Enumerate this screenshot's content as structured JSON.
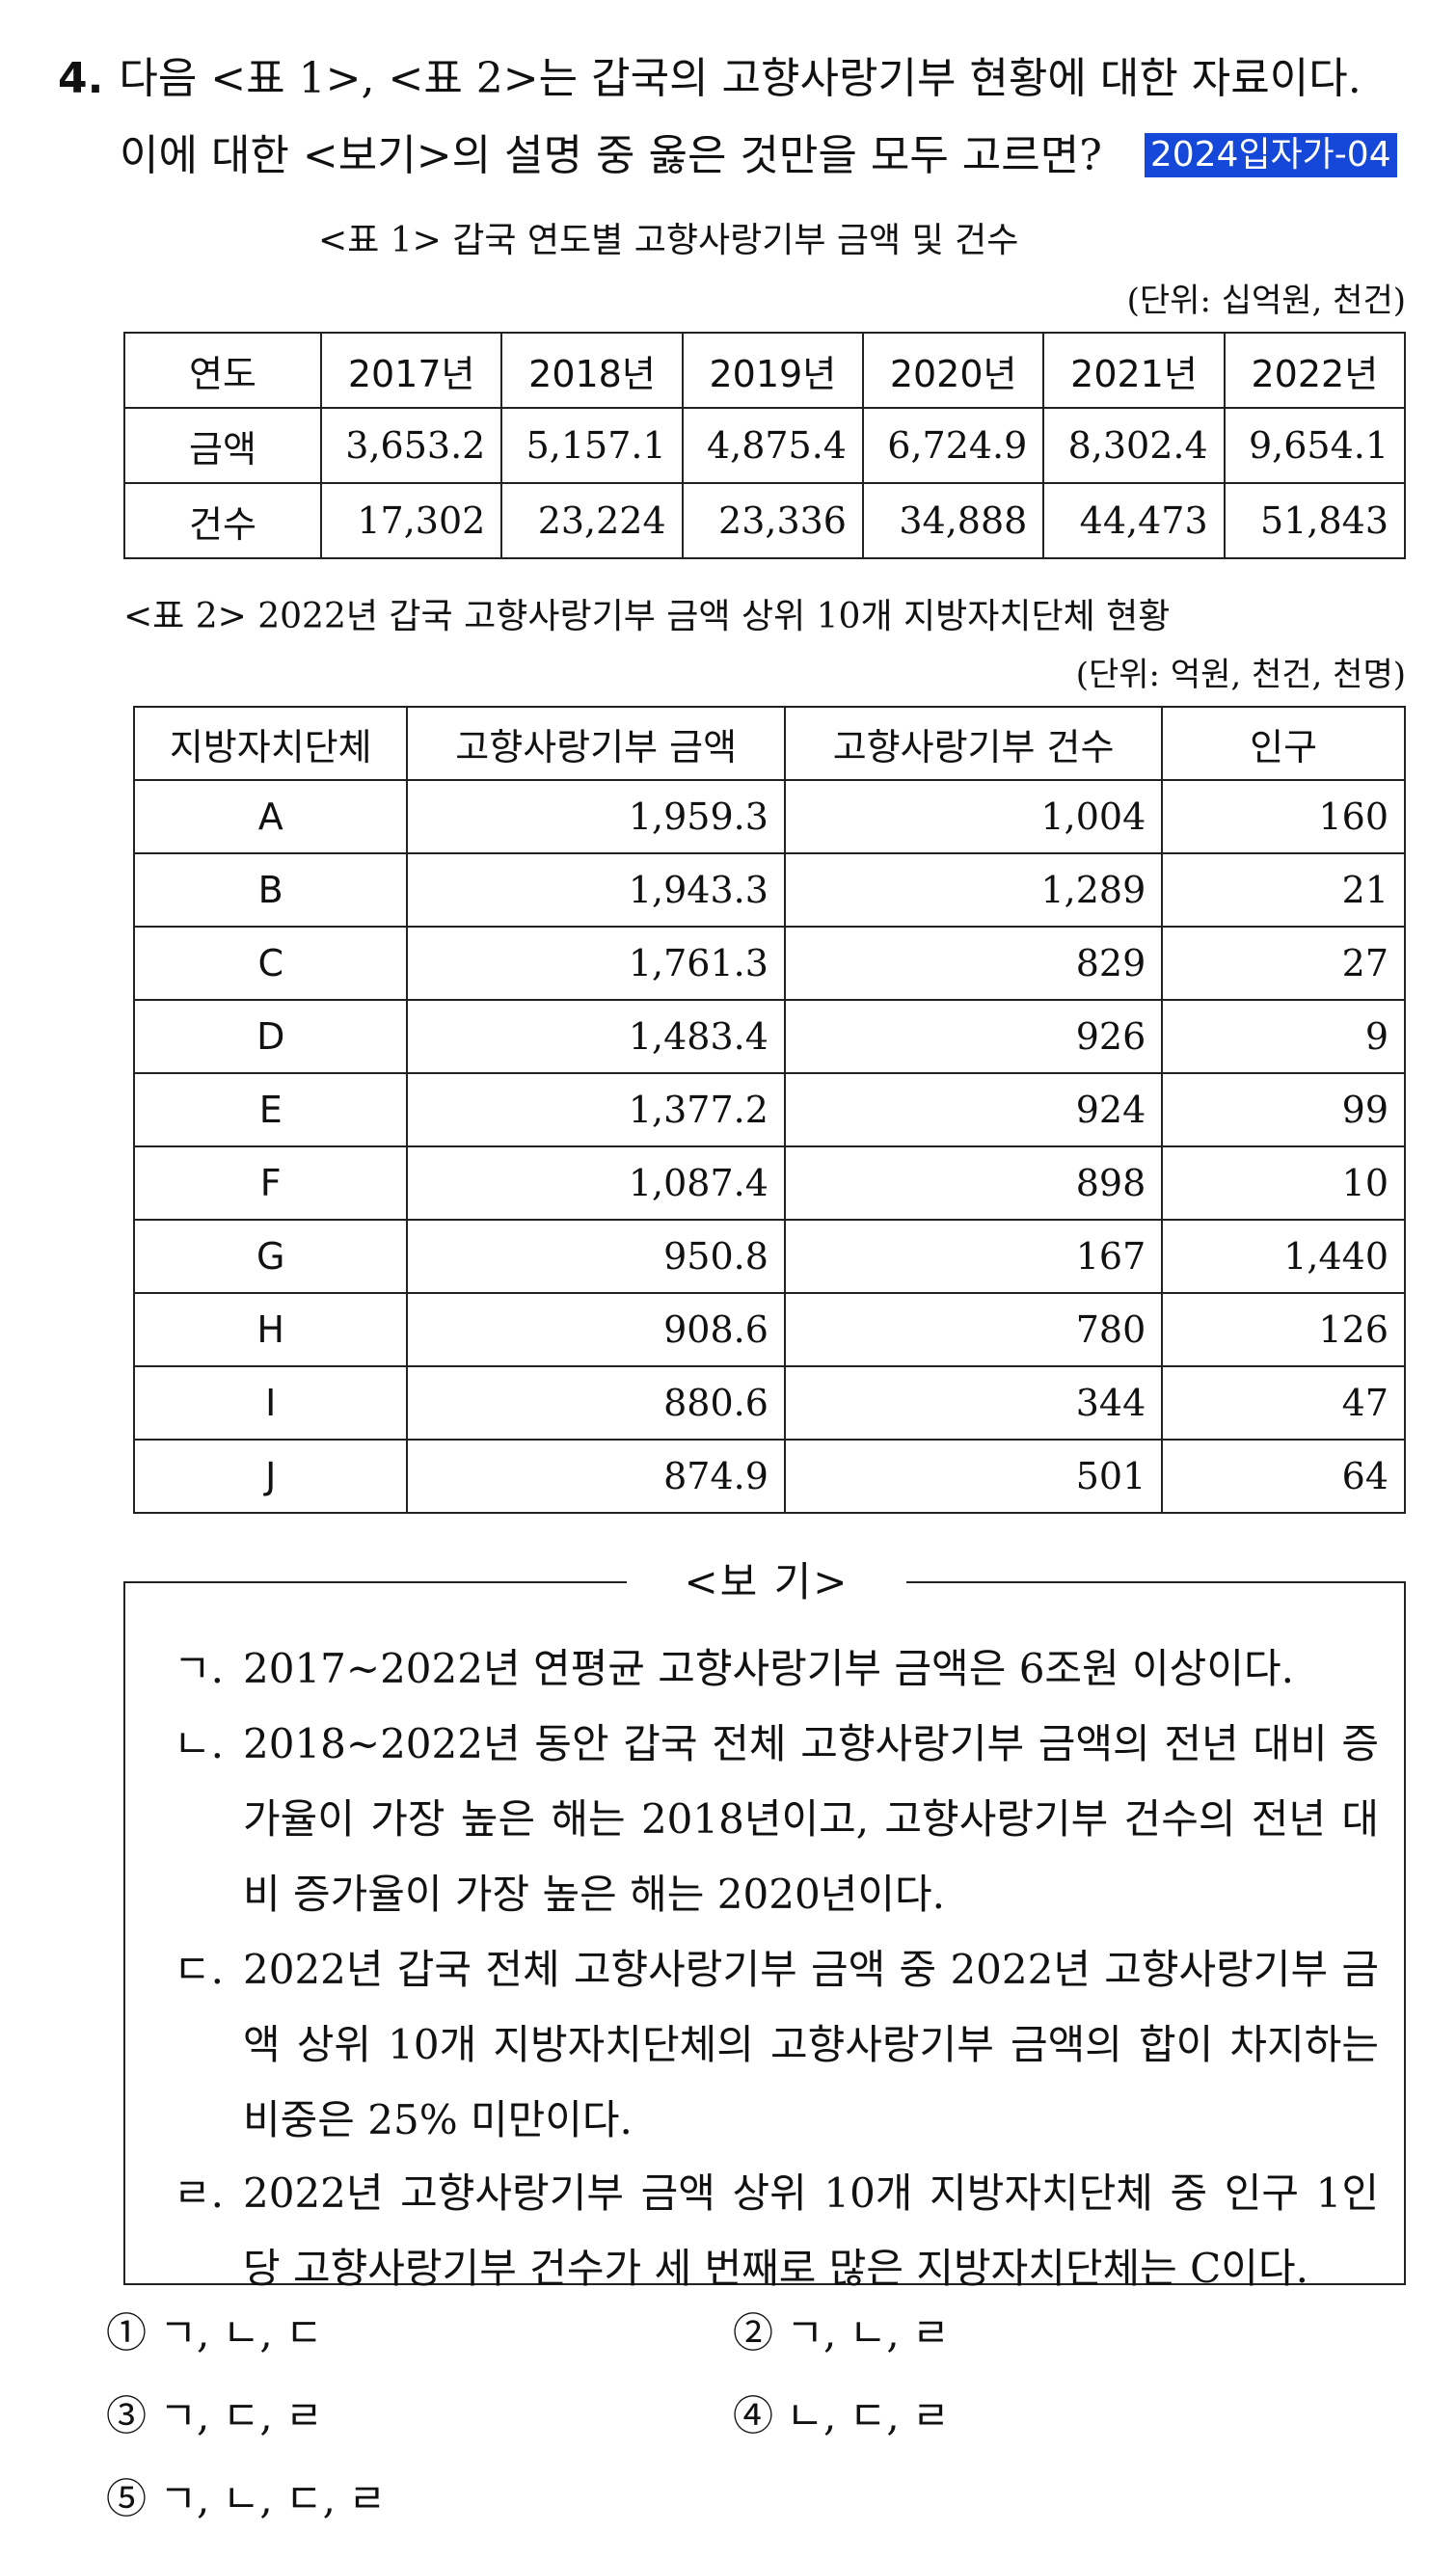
{
  "question": {
    "number": "4.",
    "line1": "다음 <표 1>, <표 2>는 갑국의 고향사랑기부 현황에 대한 자료이다.",
    "line2": "이에 대한 <보기>의 설명 중 옳은 것만을 모두 고르면?",
    "tag": "2024입자가-04"
  },
  "table1": {
    "caption": "<표 1> 갑국 연도별 고향사랑기부 금액 및 건수",
    "unit": "(단위: 십억원, 천건)",
    "header": [
      "연도",
      "2017년",
      "2018년",
      "2019년",
      "2020년",
      "2021년",
      "2022년"
    ],
    "rows": [
      [
        "금액",
        "3,653.2",
        "5,157.1",
        "4,875.4",
        "6,724.9",
        "8,302.4",
        "9,654.1"
      ],
      [
        "건수",
        "17,302",
        "23,224",
        "23,336",
        "34,888",
        "44,473",
        "51,843"
      ]
    ]
  },
  "table2": {
    "caption": "<표 2> 2022년 갑국 고향사랑기부 금액 상위 10개 지방자치단체 현황",
    "unit": "(단위: 억원, 천건, 천명)",
    "header": [
      "지방자치단체",
      "고향사랑기부 금액",
      "고향사랑기부 건수",
      "인구"
    ],
    "rows": [
      [
        "A",
        "1,959.3",
        "1,004",
        "160"
      ],
      [
        "B",
        "1,943.3",
        "1,289",
        "21"
      ],
      [
        "C",
        "1,761.3",
        "829",
        "27"
      ],
      [
        "D",
        "1,483.4",
        "926",
        "9"
      ],
      [
        "E",
        "1,377.2",
        "924",
        "99"
      ],
      [
        "F",
        "1,087.4",
        "898",
        "10"
      ],
      [
        "G",
        "950.8",
        "167",
        "1,440"
      ],
      [
        "H",
        "908.6",
        "780",
        "126"
      ],
      [
        "I",
        "880.6",
        "344",
        "47"
      ],
      [
        "J",
        "874.9",
        "501",
        "64"
      ]
    ]
  },
  "bogi": {
    "title": "<보    기>",
    "items": [
      {
        "mark": "ㄱ.",
        "text": "2017~2022년 연평균 고향사랑기부 금액은 6조원 이상이다."
      },
      {
        "mark": "ㄴ.",
        "text": "2018~2022년 동안 갑국 전체 고향사랑기부 금액의 전년 대비 증가율이 가장 높은 해는 2018년이고, 고향사랑기부 건수의 전년 대비 증가율이 가장 높은 해는 2020년이다."
      },
      {
        "mark": "ㄷ.",
        "text": "2022년 갑국 전체 고향사랑기부 금액 중 2022년 고향사랑기부 금액 상위 10개 지방자치단체의 고향사랑기부 금액의 합이 차지하는 비중은 25% 미만이다."
      },
      {
        "mark": "ㄹ.",
        "text": "2022년 고향사랑기부 금액 상위 10개 지방자치단체 중 인구 1인당 고향사랑기부 건수가 세 번째로 많은 지방자치단체는 C이다."
      }
    ]
  },
  "choices": [
    "① ㄱ, ㄴ, ㄷ",
    "② ㄱ, ㄴ, ㄹ",
    "③ ㄱ, ㄷ, ㄹ",
    "④ ㄴ, ㄷ, ㄹ",
    "⑤ ㄱ, ㄴ, ㄷ, ㄹ"
  ]
}
